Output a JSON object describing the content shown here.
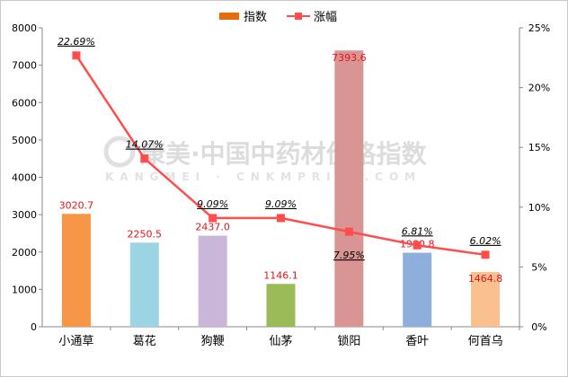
{
  "chart_data": {
    "type": "bar",
    "categories": [
      "小通草",
      "葛花",
      "狗鞭",
      "仙茅",
      "锁阳",
      "香叶",
      "何首乌"
    ],
    "series": [
      {
        "name": "指数",
        "kind": "bar",
        "axis": "left",
        "values": [
          3020.7,
          2250.5,
          2437.0,
          1146.1,
          7393.6,
          1980.8,
          1464.8
        ],
        "value_labels": [
          "3020.7",
          "2250.5",
          "2437.0",
          "1146.1",
          "7393.6",
          "1980.8",
          "1464.8"
        ],
        "colors": [
          "#f79646",
          "#9bd4e3",
          "#c9b6d8",
          "#9bbb59",
          "#d99594",
          "#8eaedb",
          "#fac08f"
        ]
      },
      {
        "name": "涨幅",
        "kind": "line",
        "axis": "right",
        "values": [
          22.69,
          14.07,
          9.09,
          9.09,
          7.95,
          6.81,
          6.02
        ],
        "value_labels": [
          "22.69%",
          "14.07%",
          "9.09%",
          "9.09%",
          "7.95%",
          "6.81%",
          "6.02%"
        ],
        "color": "#ff4d4d"
      }
    ],
    "y_left": {
      "min": 0,
      "max": 8000,
      "ticks": [
        "0",
        "1000",
        "2000",
        "3000",
        "4000",
        "5000",
        "6000",
        "7000",
        "8000"
      ]
    },
    "y_right": {
      "min": 0,
      "max": 25,
      "ticks": [
        "0%",
        "5%",
        "10%",
        "15%",
        "20%",
        "25%"
      ]
    },
    "legend": {
      "position": "top",
      "items": [
        "指数",
        "涨幅"
      ]
    },
    "grid": false
  },
  "watermark": {
    "main": "康美·中国中药材价格指数",
    "sub": "KANGMEI · CNKMPRICE.COM"
  },
  "colors": {
    "bar_legend": "#e46c0a",
    "line": "#ff4d4d",
    "label_red": "#e0141e"
  }
}
